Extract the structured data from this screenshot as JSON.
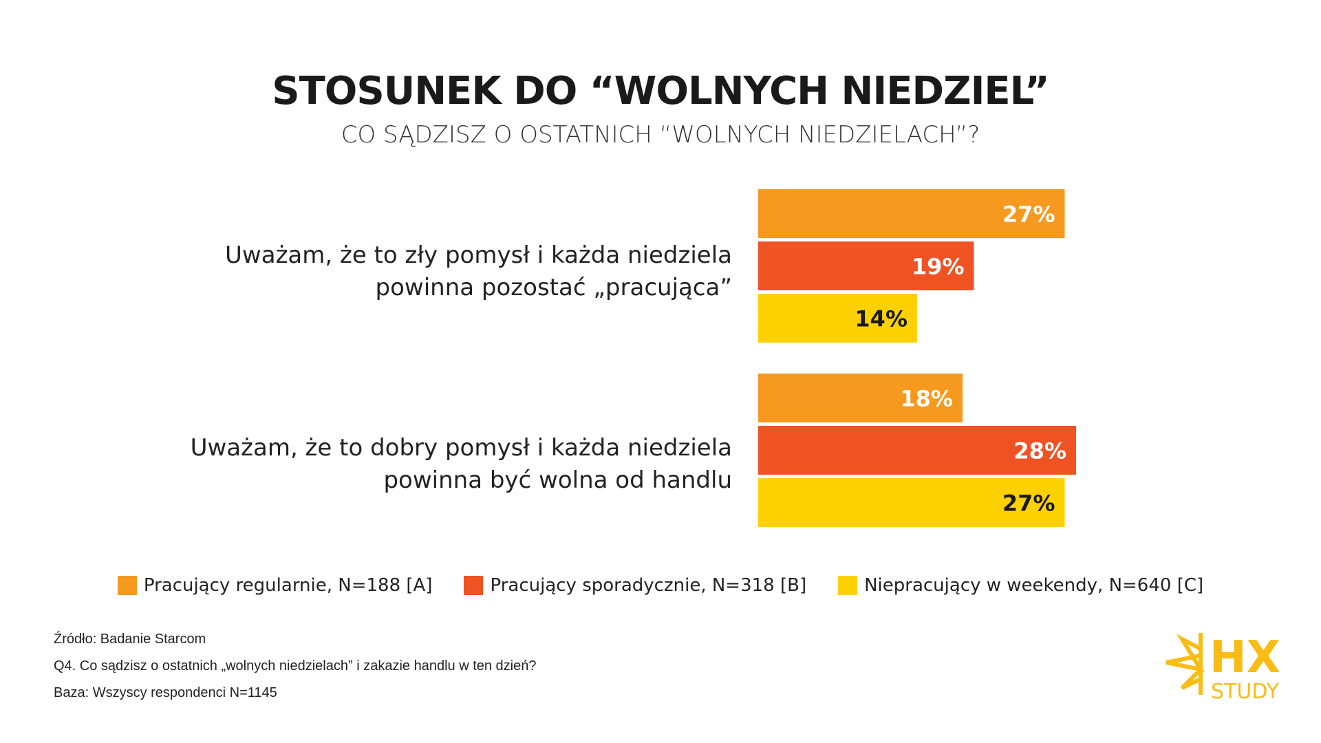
{
  "header": {
    "title": "STOSUNEK DO “WOLNYCH NIEDZIEL”",
    "subtitle": "CO SĄDZISZ O OSTATNICH “WOLNYCH NIEDZIELACH”?"
  },
  "chart_data": {
    "type": "bar",
    "orientation": "horizontal",
    "title": "STOSUNEK DO “WOLNYCH NIEDZIEL”",
    "categories": [
      [
        "Uważam, że to zły pomysł i każda niedziela",
        "powinna pozostać „pracująca”"
      ],
      [
        "Uważam, że to dobry pomysł i każda niedziela",
        "powinna być wolna od handlu"
      ]
    ],
    "series": [
      {
        "name": "Pracujący regularnie, N=188 [A]",
        "color": "#F7991F",
        "label_color": "#ffffff",
        "values": [
          27,
          18
        ]
      },
      {
        "name": "Pracujący sporadycznie, N=318 [B]",
        "color": "#F05323",
        "label_color": "#ffffff",
        "values": [
          19,
          28
        ]
      },
      {
        "name": "Niepracujący w weekendy, N=640 [C]",
        "color": "#FDD000",
        "label_color": "#1a1a1a",
        "values": [
          14,
          27
        ]
      }
    ],
    "value_suffix": "%",
    "legend_position": "bottom",
    "grid": false
  },
  "footer": {
    "source": "Źródło: Badanie Starcom",
    "question": "Q4. Co sądzisz o ostatnich „wolnych niedzielach” i zakazie handlu w ten dzień?",
    "base": "Baza: Wszyscy respondenci N=1145"
  },
  "logo": {
    "text1": "HX",
    "text2": "STUDY",
    "color": "#F9BC15"
  }
}
